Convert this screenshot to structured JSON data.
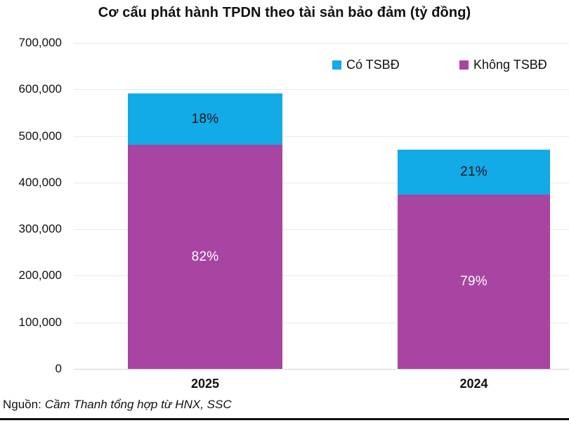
{
  "title": "Cơ cấu phát hành TPDN theo tài sản bảo đảm (tỷ đồng)",
  "legend": [
    {
      "label": "Có TSBĐ",
      "color": "#12AAE7"
    },
    {
      "label": "Không TSBĐ",
      "color": "#A845A3"
    }
  ],
  "footer": {
    "prefix": "Nguồn:",
    "source": "Cầm Thanh tổng hợp từ HNX, SSC"
  },
  "chart_data": {
    "type": "bar",
    "stacked": true,
    "title": "Cơ cấu phát hành TPDN theo tài sản bảo đảm (tỷ đồng)",
    "categories": [
      "2025",
      "2024"
    ],
    "series": [
      {
        "name": "Không TSBĐ",
        "color": "#A845A3",
        "values": [
          481000,
          374000
        ],
        "percent_labels": [
          "82%",
          "79%"
        ],
        "label_color": "#ffffff"
      },
      {
        "name": "Có TSBĐ",
        "color": "#12AAE7",
        "values": [
          110000,
          97000
        ],
        "percent_labels": [
          "18%",
          "21%"
        ],
        "label_color": "#161616"
      }
    ],
    "totals": [
      591000,
      471000
    ],
    "xlabel": "",
    "ylabel": "",
    "ylim": [
      0,
      700000
    ],
    "ytick_step": 100000,
    "ytick_labels": [
      "0",
      "100,000",
      "200,000",
      "300,000",
      "400,000",
      "500,000",
      "600,000",
      "700,000"
    ],
    "grid": true,
    "legend_position": "top-right",
    "unit": "tỷ đồng"
  }
}
